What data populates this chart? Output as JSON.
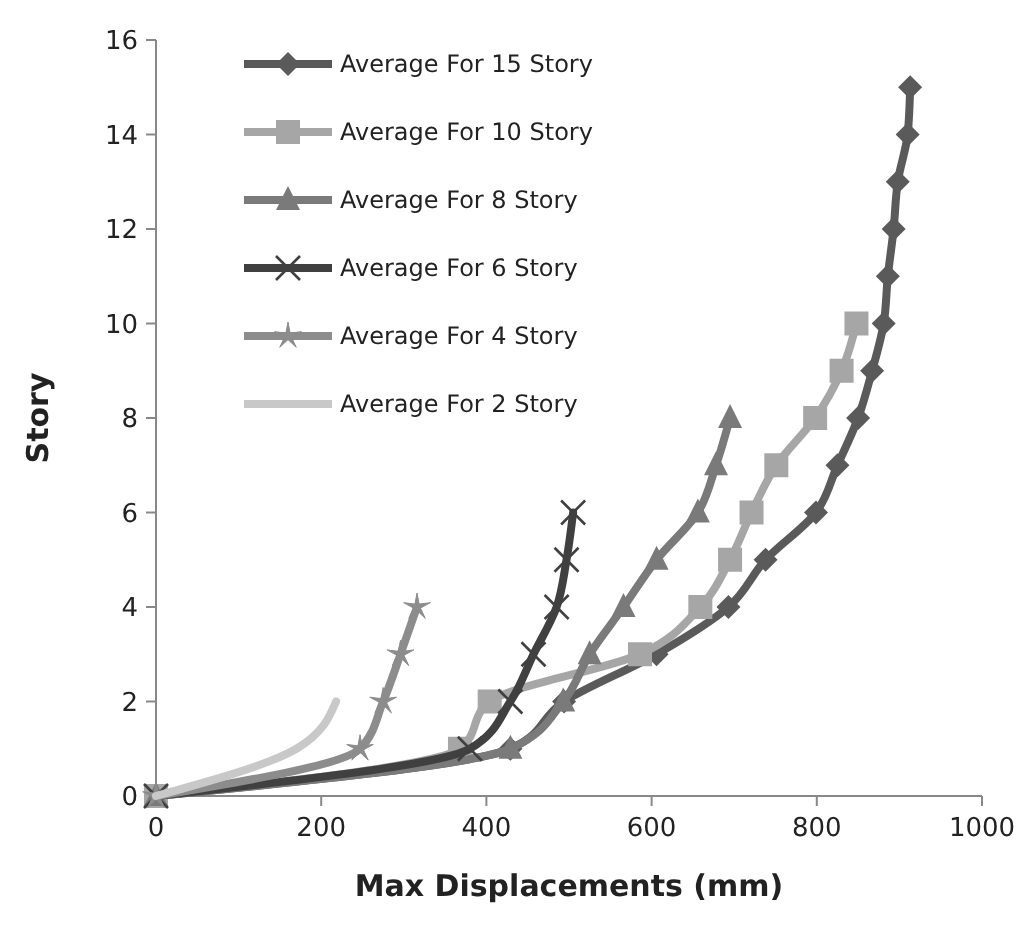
{
  "chart_data": {
    "type": "line",
    "xlabel": "Max Displacements (mm)",
    "ylabel": "Story",
    "xlim": [
      0,
      1000
    ],
    "xticks": [
      0,
      200,
      400,
      600,
      800,
      1000
    ],
    "ylim": [
      0,
      16
    ],
    "yticks": [
      0,
      2,
      4,
      6,
      8,
      10,
      12,
      14,
      16
    ],
    "grid": false,
    "legend": "top left",
    "line_style": "solid",
    "series": [
      {
        "name": "Average For 15 Story",
        "color": "#5a5a5a",
        "marker": "diamond",
        "x": [
          0,
          429,
          494,
          606,
          693,
          738,
          799,
          825,
          850,
          867,
          881,
          886,
          893,
          898,
          910,
          913
        ],
        "values": [
          0,
          1,
          2,
          3,
          4,
          5,
          6,
          7,
          8,
          9,
          10,
          11,
          12,
          13,
          14,
          15
        ]
      },
      {
        "name": "Average For 10 Story",
        "color": "#a6a6a6",
        "marker": "square",
        "x": [
          0,
          368,
          404,
          586,
          659,
          695,
          721,
          751,
          798,
          830,
          848
        ],
        "values": [
          0,
          1,
          2,
          3,
          4,
          5,
          6,
          7,
          8,
          9,
          10
        ]
      },
      {
        "name": "Average For 8 Story",
        "color": "#7a7a7a",
        "marker": "triangle",
        "x": [
          0,
          429,
          493,
          525,
          566,
          606,
          656,
          678,
          695
        ],
        "values": [
          0,
          1,
          2,
          3,
          4,
          5,
          6,
          7,
          8
        ]
      },
      {
        "name": "Average For 6 Story",
        "color": "#404040",
        "marker": "cross",
        "x": [
          0,
          380,
          429,
          457,
          485,
          497,
          505
        ],
        "values": [
          0,
          1,
          2,
          3,
          4,
          5,
          6
        ]
      },
      {
        "name": "Average For 4 Story",
        "color": "#8c8c8c",
        "marker": "star",
        "x": [
          0,
          247,
          275,
          296,
          316
        ],
        "values": [
          0,
          1,
          2,
          3,
          4
        ]
      },
      {
        "name": "Average For 2 Story",
        "color": "#c8c8c8",
        "marker": "none",
        "x": [
          0,
          170,
          218
        ],
        "values": [
          0,
          1,
          2
        ]
      }
    ]
  }
}
